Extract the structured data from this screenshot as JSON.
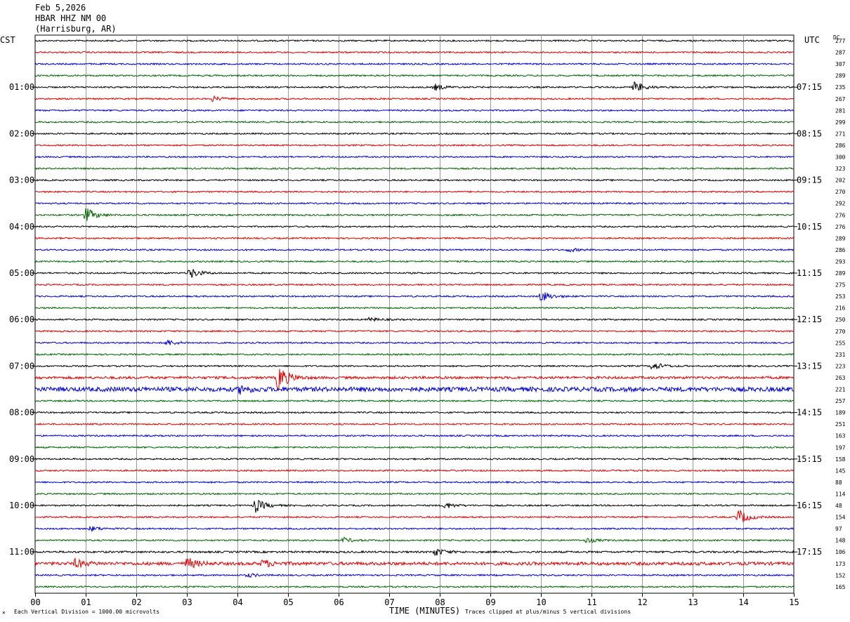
{
  "header": {
    "date": "Feb 5,2026",
    "station": "HBAR HHZ NM 00",
    "location": "(Harrisburg, AR)"
  },
  "left_tz": "CST",
  "right_tz": "UTC",
  "dc_label": "DC",
  "footer": {
    "scale": "Each Vertical Division = 1000.00 microvolts",
    "xlabel": "TIME (MINUTES)",
    "clip": "Traces clipped at plus/minus 5 vertical divisions"
  },
  "chart_data": {
    "type": "line",
    "title": "HBAR HHZ NM 00",
    "xlabel": "TIME (MINUTES)",
    "xlim": [
      0,
      15
    ],
    "x_ticks": [
      "00",
      "01",
      "02",
      "03",
      "04",
      "05",
      "06",
      "07",
      "08",
      "09",
      "10",
      "11",
      "12",
      "13",
      "14",
      "15"
    ],
    "trace_colors": [
      "#000000",
      "#e00000",
      "#0000d0",
      "#006400"
    ],
    "cst_labels": [
      "01:00",
      "02:00",
      "03:00",
      "04:00",
      "05:00",
      "06:00",
      "07:00",
      "08:00",
      "09:00",
      "10:00",
      "11:00"
    ],
    "utc_labels": [
      "07:15",
      "08:15",
      "09:15",
      "10:15",
      "11:15",
      "12:15",
      "13:15",
      "14:15",
      "15:15",
      "16:15",
      "17:15"
    ],
    "dc_offsets": [
      277,
      287,
      307,
      289,
      235,
      267,
      281,
      299,
      271,
      286,
      300,
      323,
      202,
      270,
      292,
      276,
      276,
      289,
      286,
      293,
      289,
      275,
      253,
      216,
      250,
      270,
      255,
      231,
      223,
      263,
      221,
      257,
      189,
      251,
      163,
      197,
      158,
      145,
      88,
      114,
      48,
      154,
      97,
      148,
      106,
      173,
      152,
      165
    ],
    "events": [
      {
        "trace": 4,
        "minute": 7.9,
        "amp": 0.5
      },
      {
        "trace": 4,
        "minute": 11.85,
        "amp": 0.9
      },
      {
        "trace": 5,
        "minute": 3.5,
        "amp": 0.4
      },
      {
        "trace": 15,
        "minute": 1.0,
        "amp": 1.2
      },
      {
        "trace": 18,
        "minute": 10.55,
        "amp": 0.3
      },
      {
        "trace": 20,
        "minute": 3.05,
        "amp": 0.9
      },
      {
        "trace": 22,
        "minute": 10.0,
        "amp": 0.9
      },
      {
        "trace": 24,
        "minute": 6.6,
        "amp": 0.3
      },
      {
        "trace": 26,
        "minute": 2.6,
        "amp": 0.5
      },
      {
        "trace": 28,
        "minute": 12.2,
        "amp": 0.7
      },
      {
        "trace": 29,
        "minute": 4.8,
        "amp": 2.2
      },
      {
        "trace": 30,
        "minute": 4.05,
        "amp": 0.6
      },
      {
        "trace": 40,
        "minute": 4.35,
        "amp": 1.1
      },
      {
        "trace": 40,
        "minute": 8.1,
        "amp": 0.5
      },
      {
        "trace": 41,
        "minute": 13.9,
        "amp": 1.3
      },
      {
        "trace": 42,
        "minute": 1.1,
        "amp": 0.4
      },
      {
        "trace": 43,
        "minute": 6.1,
        "amp": 0.4
      },
      {
        "trace": 43,
        "minute": 10.9,
        "amp": 0.4
      },
      {
        "trace": 44,
        "minute": 7.9,
        "amp": 0.6
      },
      {
        "trace": 45,
        "minute": 0.8,
        "amp": 0.7
      },
      {
        "trace": 45,
        "minute": 3.0,
        "amp": 0.9
      },
      {
        "trace": 45,
        "minute": 4.5,
        "amp": 0.6
      },
      {
        "trace": 46,
        "minute": 4.2,
        "amp": 0.3
      }
    ],
    "noisy_traces": [
      {
        "trace": 30,
        "level": 0.35
      },
      {
        "trace": 29,
        "level": 0.2
      },
      {
        "trace": 45,
        "level": 0.25
      },
      {
        "trace": 44,
        "level": 0.15
      }
    ]
  }
}
